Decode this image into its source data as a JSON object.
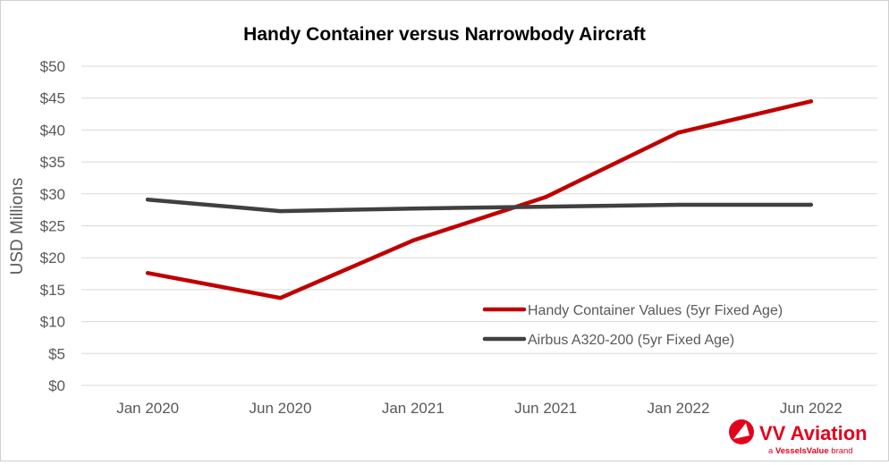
{
  "chart_data": {
    "type": "line",
    "title": "Handy Container versus Narrowbody Aircraft",
    "ylabel": "USD Millions",
    "xlabel": "",
    "categories": [
      "Jan 2020",
      "Jun 2020",
      "Jan 2021",
      "Jun 2021",
      "Jan 2022",
      "Jun 2022"
    ],
    "yticks": [
      "$0",
      "$5",
      "$10",
      "$15",
      "$20",
      "$25",
      "$30",
      "$35",
      "$40",
      "$45",
      "$50"
    ],
    "ylim": [
      0,
      50
    ],
    "grid": true,
    "legend_position": "bottom-right, inside plot",
    "series": [
      {
        "name": "Handy Container Values (5yr Fixed Age)",
        "color": "#c00000",
        "values": [
          17.6,
          13.7,
          22.7,
          29.5,
          39.6,
          44.5
        ]
      },
      {
        "name": "Airbus A320-200 (5yr Fixed Age)",
        "color": "#404040",
        "values": [
          29.1,
          27.3,
          27.7,
          28.0,
          28.3,
          28.3
        ]
      }
    ]
  },
  "brand": {
    "name": "VV Aviation",
    "tagline_prefix": "a ",
    "tagline_brand": "VesselsValue",
    "tagline_suffix": " brand",
    "accent": "#e3001b"
  }
}
